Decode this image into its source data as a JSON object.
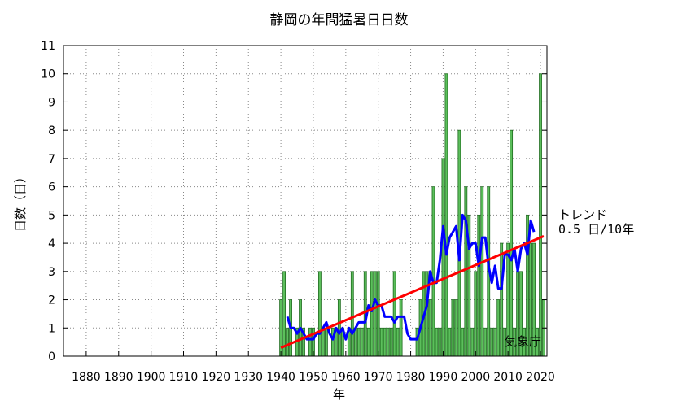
{
  "chart_data": {
    "type": "bar",
    "title": "静岡の年間猛暑日日数",
    "xlabel": "年",
    "ylabel": "日数（日）",
    "xlim": [
      1873,
      2022
    ],
    "ylim": [
      0,
      11
    ],
    "x_ticks": [
      1880,
      1890,
      1900,
      1910,
      1920,
      1930,
      1940,
      1950,
      1960,
      1970,
      1980,
      1990,
      2000,
      2010,
      2020
    ],
    "y_ticks": [
      0,
      1,
      2,
      3,
      4,
      5,
      6,
      7,
      8,
      9,
      10,
      11
    ],
    "grid": true,
    "series": [
      {
        "kind": "bar",
        "color": "#5cbf5c",
        "points": [
          [
            1940,
            2
          ],
          [
            1941,
            3
          ],
          [
            1942,
            1
          ],
          [
            1943,
            2
          ],
          [
            1944,
            0
          ],
          [
            1945,
            1
          ],
          [
            1946,
            2
          ],
          [
            1947,
            1
          ],
          [
            1948,
            0
          ],
          [
            1949,
            1
          ],
          [
            1950,
            1
          ],
          [
            1951,
            0
          ],
          [
            1952,
            3
          ],
          [
            1953,
            1
          ],
          [
            1954,
            1
          ],
          [
            1955,
            0
          ],
          [
            1956,
            1
          ],
          [
            1957,
            1
          ],
          [
            1958,
            2
          ],
          [
            1959,
            1
          ],
          [
            1960,
            0
          ],
          [
            1961,
            1
          ],
          [
            1962,
            3
          ],
          [
            1963,
            1
          ],
          [
            1964,
            1
          ],
          [
            1965,
            1
          ],
          [
            1966,
            3
          ],
          [
            1967,
            1
          ],
          [
            1968,
            3
          ],
          [
            1969,
            3
          ],
          [
            1970,
            3
          ],
          [
            1971,
            1
          ],
          [
            1972,
            1
          ],
          [
            1973,
            1
          ],
          [
            1974,
            1
          ],
          [
            1975,
            3
          ],
          [
            1976,
            1
          ],
          [
            1977,
            2
          ],
          [
            1978,
            0
          ],
          [
            1979,
            0
          ],
          [
            1980,
            0
          ],
          [
            1981,
            0
          ],
          [
            1982,
            1
          ],
          [
            1983,
            2
          ],
          [
            1984,
            3
          ],
          [
            1985,
            3
          ],
          [
            1986,
            2
          ],
          [
            1987,
            6
          ],
          [
            1988,
            1
          ],
          [
            1989,
            1
          ],
          [
            1990,
            7
          ],
          [
            1991,
            10
          ],
          [
            1992,
            1
          ],
          [
            1993,
            2
          ],
          [
            1994,
            2
          ],
          [
            1995,
            8
          ],
          [
            1996,
            1
          ],
          [
            1997,
            6
          ],
          [
            1998,
            5
          ],
          [
            1999,
            1
          ],
          [
            2000,
            3
          ],
          [
            2001,
            5
          ],
          [
            2002,
            6
          ],
          [
            2003,
            1
          ],
          [
            2004,
            6
          ],
          [
            2005,
            1
          ],
          [
            2006,
            1
          ],
          [
            2007,
            2
          ],
          [
            2008,
            4
          ],
          [
            2009,
            1
          ],
          [
            2010,
            4
          ],
          [
            2011,
            8
          ],
          [
            2012,
            1
          ],
          [
            2013,
            3
          ],
          [
            2014,
            3
          ],
          [
            2015,
            1
          ],
          [
            2016,
            5
          ],
          [
            2017,
            4
          ],
          [
            2018,
            4
          ],
          [
            2019,
            1
          ],
          [
            2020,
            10
          ],
          [
            2021,
            2
          ]
        ]
      },
      {
        "kind": "line",
        "color": "#0000ff",
        "points": [
          [
            1942,
            1.4
          ],
          [
            1943,
            1.0
          ],
          [
            1944,
            1.0
          ],
          [
            1945,
            0.8
          ],
          [
            1946,
            1.0
          ],
          [
            1947,
            0.8
          ],
          [
            1948,
            0.6
          ],
          [
            1949,
            0.6
          ],
          [
            1950,
            0.6
          ],
          [
            1951,
            0.8
          ],
          [
            1952,
            0.8
          ],
          [
            1953,
            1.0
          ],
          [
            1954,
            1.2
          ],
          [
            1955,
            0.8
          ],
          [
            1956,
            0.6
          ],
          [
            1957,
            1.0
          ],
          [
            1958,
            0.8
          ],
          [
            1959,
            1.0
          ],
          [
            1960,
            0.6
          ],
          [
            1961,
            1.0
          ],
          [
            1962,
            0.8
          ],
          [
            1963,
            1.0
          ],
          [
            1964,
            1.2
          ],
          [
            1965,
            1.2
          ],
          [
            1966,
            1.2
          ],
          [
            1967,
            1.8
          ],
          [
            1968,
            1.6
          ],
          [
            1969,
            2.0
          ],
          [
            1970,
            1.8
          ],
          [
            1971,
            1.8
          ],
          [
            1972,
            1.4
          ],
          [
            1973,
            1.4
          ],
          [
            1974,
            1.4
          ],
          [
            1975,
            1.2
          ],
          [
            1976,
            1.4
          ],
          [
            1977,
            1.4
          ],
          [
            1978,
            1.4
          ],
          [
            1979,
            0.8
          ],
          [
            1980,
            0.6
          ],
          [
            1981,
            0.6
          ],
          [
            1982,
            0.6
          ],
          [
            1983,
            1.0
          ],
          [
            1984,
            1.4
          ],
          [
            1985,
            1.8
          ],
          [
            1986,
            3.0
          ],
          [
            1987,
            2.6
          ],
          [
            1988,
            2.6
          ],
          [
            1989,
            3.4
          ],
          [
            1990,
            4.6
          ],
          [
            1991,
            3.6
          ],
          [
            1992,
            4.2
          ],
          [
            1993,
            4.4
          ],
          [
            1994,
            4.6
          ],
          [
            1995,
            3.4
          ],
          [
            1996,
            5.0
          ],
          [
            1997,
            4.8
          ],
          [
            1998,
            3.8
          ],
          [
            1999,
            4.0
          ],
          [
            2000,
            4.0
          ],
          [
            2001,
            3.2
          ],
          [
            2002,
            4.2
          ],
          [
            2003,
            4.2
          ],
          [
            2004,
            3.2
          ],
          [
            2005,
            2.6
          ],
          [
            2006,
            3.2
          ],
          [
            2007,
            2.4
          ],
          [
            2008,
            2.4
          ],
          [
            2009,
            3.6
          ],
          [
            2010,
            3.6
          ],
          [
            2011,
            3.4
          ],
          [
            2012,
            3.8
          ],
          [
            2013,
            3.0
          ],
          [
            2014,
            3.8
          ],
          [
            2015,
            4.0
          ],
          [
            2016,
            3.6
          ],
          [
            2017,
            4.8
          ],
          [
            2018,
            4.4
          ]
        ]
      },
      {
        "kind": "trend",
        "color": "#ff0000",
        "points": [
          [
            1940,
            0.3
          ],
          [
            2021,
            4.25
          ]
        ]
      }
    ],
    "trend_label": [
      "トレンド",
      "0.5 日/10年"
    ],
    "credit": "気象庁"
  }
}
